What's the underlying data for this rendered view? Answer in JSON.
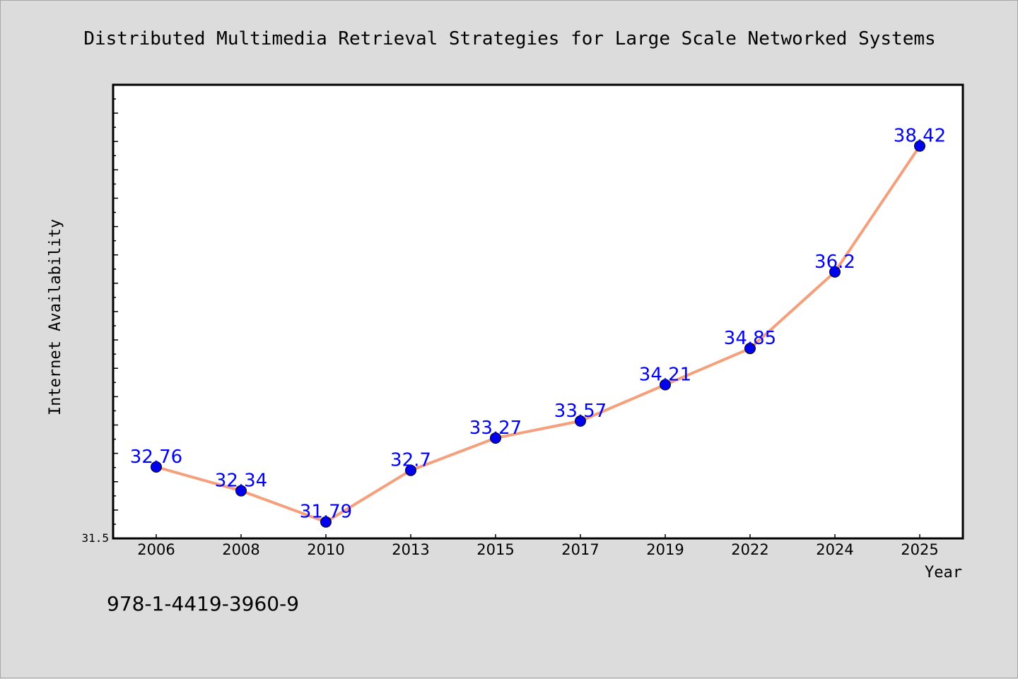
{
  "chart_data": {
    "type": "line",
    "title": "Distributed Multimedia Retrieval Strategies for Large Scale Networked Systems",
    "xlabel": "Year",
    "ylabel": "Internet Availability",
    "categories": [
      "2006",
      "2008",
      "2010",
      "2013",
      "2015",
      "2017",
      "2019",
      "2022",
      "2024",
      "2025"
    ],
    "series": [
      {
        "values": [
          32.76,
          32.34,
          31.79,
          32.7,
          33.27,
          33.57,
          34.21,
          34.85,
          36.2,
          38.42
        ],
        "labels": [
          "32.76",
          "32.34",
          "31.79",
          "32.7",
          "33.27",
          "33.57",
          "34.21",
          "34.85",
          "36.2",
          "38.42"
        ]
      }
    ],
    "y_tick_labels": [
      "31.5"
    ],
    "ylim": [
      31.5,
      39.5
    ],
    "grid": false,
    "line_color": "#f4a07c",
    "marker_color": "#0000ee",
    "label_color": "#0000ff"
  },
  "footer_text": "978-1-4419-3960-9"
}
